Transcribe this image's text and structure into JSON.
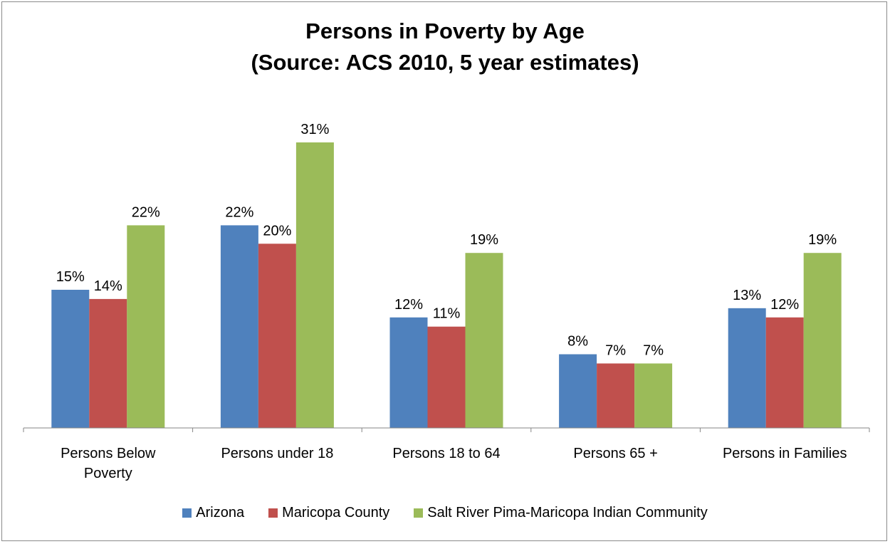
{
  "chart_data": {
    "type": "bar",
    "title": "Persons in Poverty by Age",
    "subtitle": "(Source: ACS 2010, 5 year estimates)",
    "categories": [
      [
        "Persons Below",
        "Poverty"
      ],
      [
        "Persons under 18"
      ],
      [
        "Persons 18 to 64"
      ],
      [
        "Persons 65 +"
      ],
      [
        "Persons in Families"
      ]
    ],
    "series": [
      {
        "name": "Arizona",
        "color": "#4f81bd",
        "values": [
          15,
          22,
          12,
          8,
          13
        ],
        "labels": [
          "15%",
          "22%",
          "12%",
          "8%",
          "13%"
        ]
      },
      {
        "name": "Maricopa County",
        "color": "#c0504d",
        "values": [
          14,
          20,
          11,
          7,
          12
        ],
        "labels": [
          "14%",
          "20%",
          "11%",
          "7%",
          "12%"
        ]
      },
      {
        "name": "Salt River Pima-Maricopa Indian Community",
        "color": "#9bbb59",
        "values": [
          22,
          31,
          19,
          7,
          19
        ],
        "labels": [
          "22%",
          "31%",
          "19%",
          "7%",
          "19%"
        ]
      }
    ],
    "ylim": [
      0,
      35
    ],
    "grid": false,
    "legend_position": "bottom",
    "xlabel": "",
    "ylabel": ""
  }
}
